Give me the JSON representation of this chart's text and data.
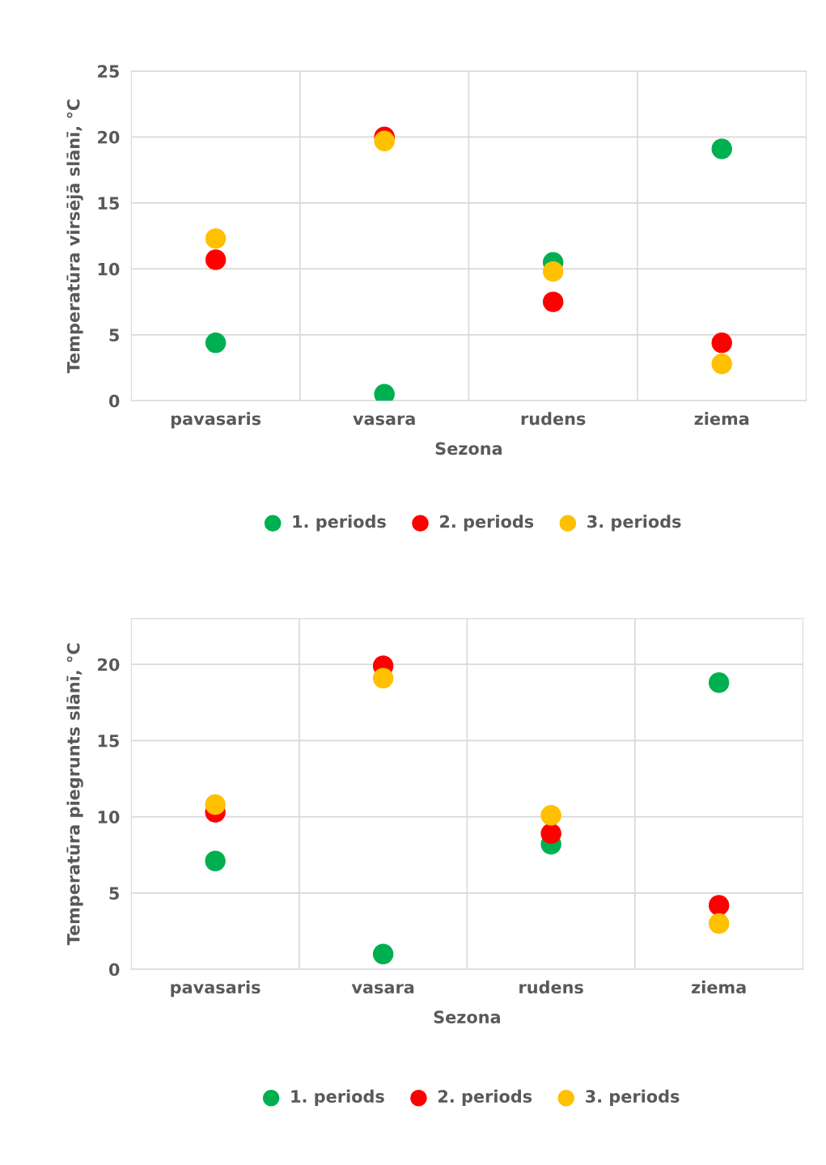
{
  "chart_data": [
    {
      "type": "scatter",
      "xlabel": "Sezona",
      "ylabel": "Temperatūra virsējā slānī, °C",
      "categories": [
        "pavasaris",
        "vasara",
        "rudens",
        "ziema"
      ],
      "ylim": [
        0,
        25
      ],
      "yticks": [
        0,
        5,
        10,
        15,
        20,
        25
      ],
      "grid": true,
      "legend": "bottom",
      "marker": "circle",
      "series": [
        {
          "name": "1. periods",
          "color": "#00b050",
          "values": [
            4.4,
            0.5,
            10.5,
            19.1
          ]
        },
        {
          "name": "2. periods",
          "color": "#ff0000",
          "values": [
            10.7,
            20.0,
            7.5,
            4.4
          ]
        },
        {
          "name": "3. periods",
          "color": "#ffc000",
          "values": [
            12.3,
            19.7,
            9.8,
            2.8
          ]
        }
      ]
    },
    {
      "type": "scatter",
      "xlabel": "Sezona",
      "ylabel": "Temperatūra piegrunts slānī, °C",
      "categories": [
        "pavasaris",
        "vasara",
        "rudens",
        "ziema"
      ],
      "ylim": [
        0,
        23
      ],
      "yticks": [
        0,
        5,
        10,
        15,
        20
      ],
      "grid": true,
      "legend": "bottom",
      "marker": "circle",
      "series": [
        {
          "name": "1. periods",
          "color": "#00b050",
          "values": [
            7.1,
            1.0,
            8.2,
            18.8
          ]
        },
        {
          "name": "2. periods",
          "color": "#ff0000",
          "values": [
            10.3,
            19.9,
            8.9,
            4.2
          ]
        },
        {
          "name": "3. periods",
          "color": "#ffc000",
          "values": [
            10.8,
            19.1,
            10.1,
            3.0
          ]
        }
      ]
    }
  ]
}
